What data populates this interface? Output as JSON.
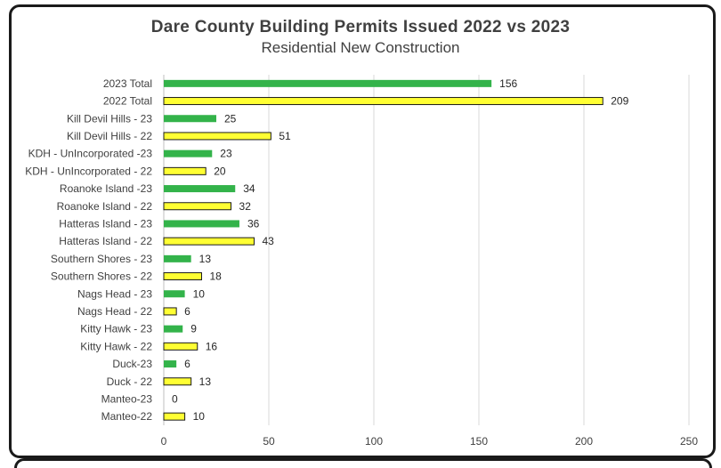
{
  "title": "Dare County Building Permits Issued 2022 vs 2023",
  "subtitle": "Residential New Construction",
  "colors": {
    "y2023": "#33b34a",
    "y2022": "#ffff33",
    "y2022_border": "#1a1a1a",
    "grid": "#d9d9d9"
  },
  "chart_data": {
    "type": "bar",
    "orientation": "horizontal",
    "title": "Dare County Building Permits Issued 2022 vs 2023",
    "subtitle": "Residential New Construction",
    "categories": [
      "2023 Total",
      "2022 Total",
      "Kill Devil Hills - 23",
      "Kill Devil Hills - 22",
      "KDH - UnIncorporated -23",
      "KDH - UnIncorporated - 22",
      "Roanoke Island -23",
      "Roanoke Island - 22",
      "Hatteras Island - 23",
      "Hatteras Island - 22",
      "Southern Shores - 23",
      "Southern Shores - 22",
      "Nags Head - 23",
      "Nags Head - 22",
      "Kitty Hawk - 23",
      "Kitty Hawk - 22",
      "Duck-23",
      "Duck - 22",
      "Manteo-23",
      "Manteo-22"
    ],
    "values": [
      156,
      209,
      25,
      51,
      23,
      20,
      34,
      32,
      36,
      43,
      13,
      18,
      10,
      6,
      9,
      16,
      6,
      13,
      0,
      10
    ],
    "years": [
      "2023",
      "2022",
      "2023",
      "2022",
      "2023",
      "2022",
      "2023",
      "2022",
      "2023",
      "2022",
      "2023",
      "2022",
      "2023",
      "2022",
      "2023",
      "2022",
      "2023",
      "2022",
      "2023",
      "2022"
    ],
    "xlim": [
      0,
      250
    ],
    "xticks": [
      0,
      50,
      100,
      150,
      200,
      250
    ],
    "grid": true,
    "data_labels": true
  }
}
